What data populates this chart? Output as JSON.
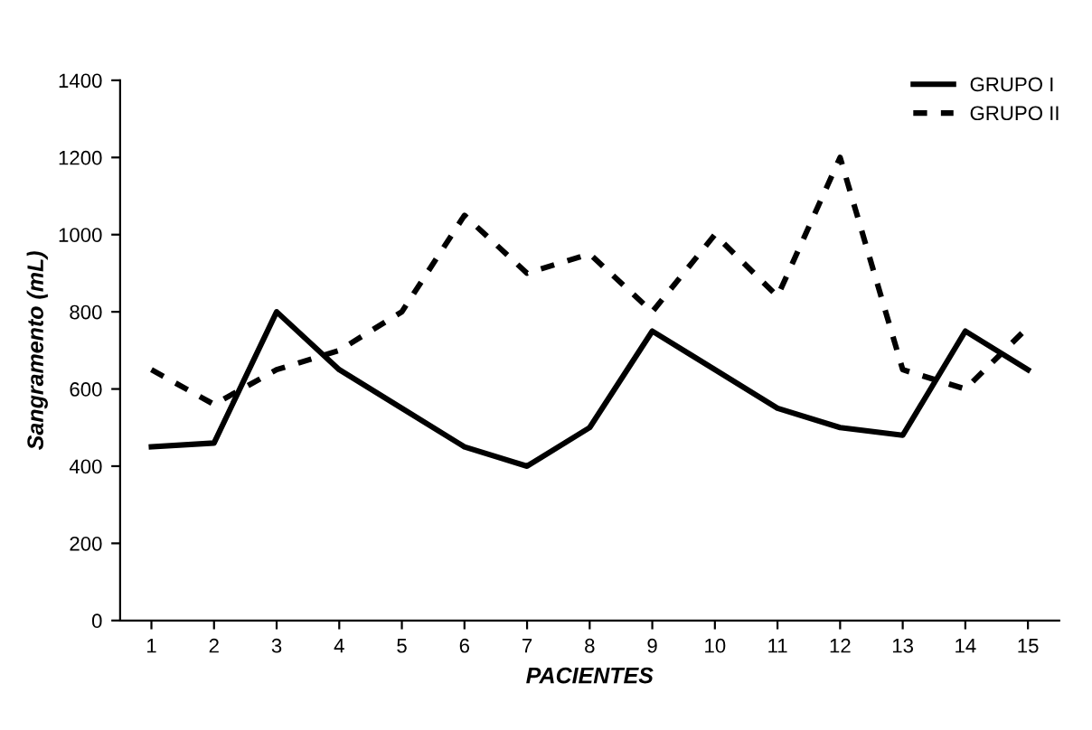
{
  "chart_data": {
    "type": "line",
    "xlabel": "PACIENTES",
    "ylabel": "Sangramento (mL)",
    "categories": [
      "1",
      "2",
      "3",
      "4",
      "5",
      "6",
      "7",
      "8",
      "9",
      "10",
      "11",
      "12",
      "13",
      "14",
      "15"
    ],
    "series": [
      {
        "name": "GRUPO I",
        "color": "#000000",
        "line_style": "solid",
        "values": [
          450,
          460,
          800,
          650,
          550,
          450,
          400,
          500,
          750,
          650,
          550,
          500,
          480,
          750,
          650
        ]
      },
      {
        "name": "GRUPO II",
        "color": "#000000",
        "line_style": "dashed",
        "values": [
          650,
          560,
          650,
          700,
          800,
          1050,
          900,
          950,
          800,
          1000,
          840,
          1200,
          650,
          600,
          760
        ]
      }
    ],
    "ylim": [
      0,
      1400
    ],
    "yticks": [
      0,
      200,
      400,
      600,
      800,
      1000,
      1200,
      1400
    ],
    "grid": false,
    "legend": "top right",
    "marker": "none"
  }
}
